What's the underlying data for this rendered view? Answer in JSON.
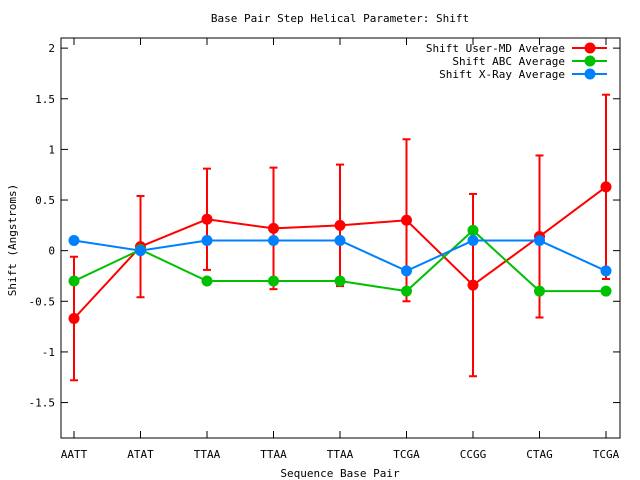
{
  "chart_data": {
    "type": "line",
    "title": "Base Pair Step Helical Parameter: Shift",
    "xlabel": "Sequence Base Pair",
    "ylabel": "Shift (Angstroms)",
    "categories": [
      "AATT",
      "ATAT",
      "TTAA",
      "TTAA",
      "TTAA",
      "TCGA",
      "CCGG",
      "CTAG",
      "TCGA"
    ],
    "ylim": [
      -1.85,
      2.1
    ],
    "yticks": [
      -1.5,
      -1,
      -0.5,
      0,
      0.5,
      1,
      1.5,
      2
    ],
    "ytick_labels": [
      "-1.5",
      "-1",
      "-0.5",
      "0",
      "0.5",
      "1",
      "1.5",
      "2"
    ],
    "grid": false,
    "legend_position": "top-right",
    "series": [
      {
        "name": "Shift User-MD Average",
        "color": "#ff0000",
        "values": [
          -0.67,
          0.04,
          0.31,
          0.22,
          0.25,
          0.3,
          -0.34,
          0.14,
          0.63
        ],
        "error": [
          0.61,
          0.5,
          0.5,
          0.6,
          0.6,
          0.8,
          0.9,
          0.8,
          0.91
        ]
      },
      {
        "name": "Shift ABC Average",
        "color": "#00c000",
        "values": [
          -0.3,
          0.01,
          -0.3,
          -0.3,
          -0.3,
          -0.4,
          0.2,
          -0.4,
          -0.4
        ]
      },
      {
        "name": "Shift X-Ray Average",
        "color": "#0080ff",
        "values": [
          0.1,
          0.0,
          0.1,
          0.1,
          0.1,
          -0.2,
          0.1,
          0.1,
          -0.2
        ]
      }
    ]
  }
}
